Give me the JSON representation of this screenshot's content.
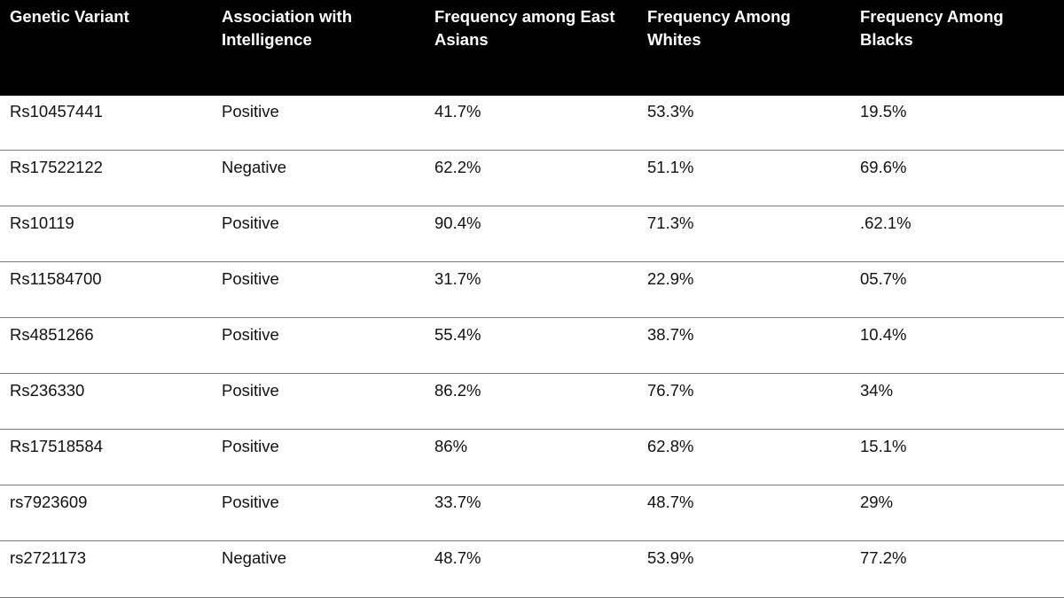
{
  "table": {
    "headers": [
      "Genetic Variant",
      "Association with\nIntelligence",
      "Frequency among East\nAsians",
      "Frequency Among\nWhites",
      "Frequency Among\nBlacks"
    ],
    "rows": [
      [
        "Rs10457441",
        "Positive",
        "41.7%",
        "53.3%",
        "19.5%"
      ],
      [
        "Rs17522122",
        "Negative",
        "62.2%",
        "51.1%",
        "69.6%"
      ],
      [
        "Rs10119",
        "Positive",
        "90.4%",
        "71.3%",
        ".62.1%"
      ],
      [
        "Rs11584700",
        "Positive",
        "31.7%",
        "22.9%",
        "05.7%"
      ],
      [
        "Rs4851266",
        "Positive",
        "55.4%",
        "38.7%",
        "10.4%"
      ],
      [
        "Rs236330",
        "Positive",
        "86.2%",
        "76.7%",
        "34%"
      ],
      [
        "Rs17518584",
        "Positive",
        "86%",
        "62.8%",
        "15.1%"
      ],
      [
        "rs7923609",
        "Positive",
        "33.7%",
        "48.7%",
        "29%"
      ],
      [
        "rs2721173",
        "Negative",
        "48.7%",
        "53.9%",
        "77.2%"
      ]
    ]
  }
}
